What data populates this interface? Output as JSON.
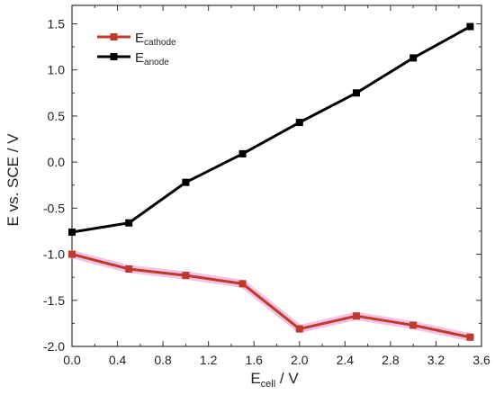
{
  "chart_data": {
    "type": "line",
    "xlabel": {
      "main": "E",
      "sub": "cell",
      "unit": " / V"
    },
    "ylabel": "E vs. SCE / V",
    "xlim": [
      0.0,
      3.6
    ],
    "ylim": [
      -2.0,
      1.7
    ],
    "xticks": [
      "0.0",
      "0.4",
      "0.8",
      "1.2",
      "1.6",
      "2.0",
      "2.4",
      "2.8",
      "3.2",
      "3.6"
    ],
    "yticks": [
      "-2.0",
      "-1.5",
      "-1.0",
      "-0.5",
      "0.0",
      "0.5",
      "1.0",
      "1.5"
    ],
    "grid": false,
    "legend_position": "top-left",
    "series": [
      {
        "legend_main": "E",
        "legend_sub": "cathode",
        "color": "#c0392b",
        "marker_color": "#c0392b",
        "halo_color": "#f0b8e0",
        "x": [
          0.0,
          0.5,
          1.0,
          1.5,
          2.0,
          2.5,
          3.0,
          3.5
        ],
        "y": [
          -1.0,
          -1.16,
          -1.23,
          -1.32,
          -1.81,
          -1.67,
          -1.77,
          -1.9
        ]
      },
      {
        "legend_main": "E",
        "legend_sub": "anode",
        "color": "#000000",
        "marker_color": "#000000",
        "x": [
          0.0,
          0.5,
          1.0,
          1.5,
          2.0,
          2.5,
          3.0,
          3.5
        ],
        "y": [
          -0.76,
          -0.66,
          -0.22,
          0.09,
          0.43,
          0.75,
          1.13,
          1.47
        ]
      }
    ]
  }
}
